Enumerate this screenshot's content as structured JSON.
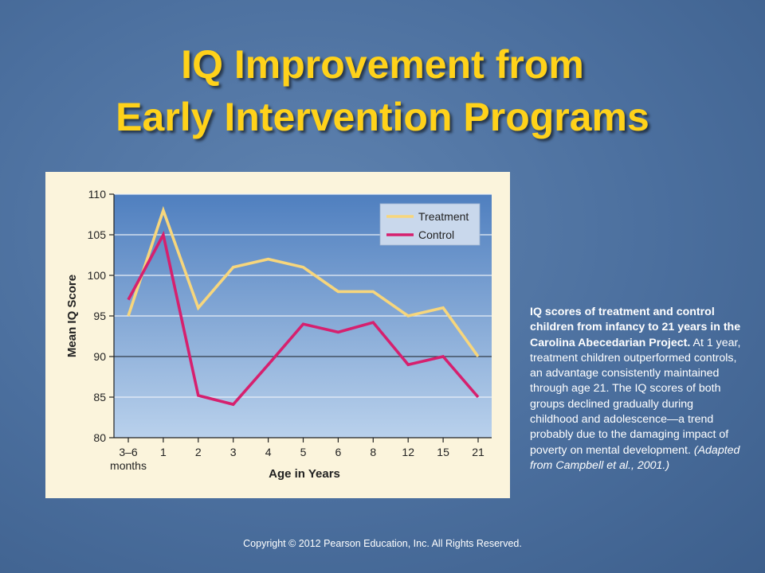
{
  "slide": {
    "title_line1": "IQ Improvement from",
    "title_line2": "Early Intervention Programs",
    "caption_bold": "IQ scores of treatment and control children from infancy to 21 years in the Carolina Abecedarian Project.",
    "caption_text": " At 1 year, treatment children outperformed controls, an advantage consistently maintained through age 21. The IQ scores of both groups declined gradually during childhood and adolescence—a trend probably due to the damaging impact of poverty on mental development.",
    "caption_italic": " (Adapted from Campbell et al., 2001.)",
    "copyright": "Copyright © 2012 Pearson Education, Inc. All Rights Reserved."
  },
  "chart_data": {
    "type": "line",
    "categories": [
      "3–6",
      "1",
      "2",
      "3",
      "4",
      "5",
      "6",
      "8",
      "12",
      "15",
      "21"
    ],
    "category_sublabel": "months",
    "xlabel": "Age in Years",
    "ylabel": "Mean IQ Score",
    "ylim": [
      80,
      110
    ],
    "yticks": [
      80,
      85,
      90,
      95,
      100,
      105,
      110
    ],
    "grid": true,
    "legend_position": "top-right",
    "series": [
      {
        "name": "Treatment",
        "color": "#f7d67c",
        "values": [
          95,
          108,
          96,
          101,
          102,
          101,
          98,
          98,
          95,
          96,
          90
        ]
      },
      {
        "name": "Control",
        "color": "#d6206e",
        "values": [
          97,
          105,
          85.2,
          84.1,
          89,
          94,
          93,
          94.2,
          89,
          90,
          85
        ]
      }
    ]
  }
}
